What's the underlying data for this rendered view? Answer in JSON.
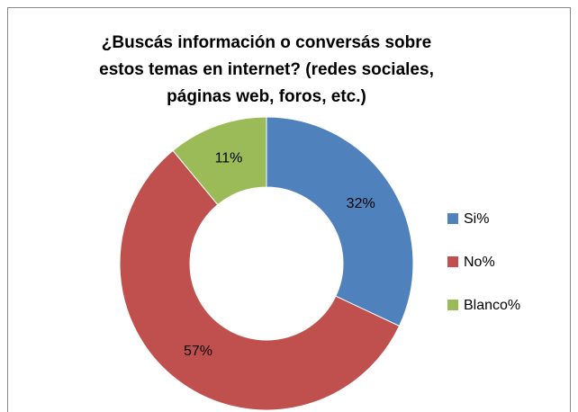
{
  "chart_data": {
    "type": "donut",
    "title": [
      "¿Buscás información o conversás sobre",
      "estos temas en internet? (redes sociales,",
      "páginas web, foros, etc.)"
    ],
    "categories": [
      "Si%",
      "No%",
      "Blanco%"
    ],
    "values": [
      32,
      57,
      11
    ],
    "value_labels": [
      "32%",
      "57%",
      "11%"
    ],
    "colors": [
      "#4f81bd",
      "#c0504d",
      "#9bbb59"
    ],
    "legend": "right"
  }
}
